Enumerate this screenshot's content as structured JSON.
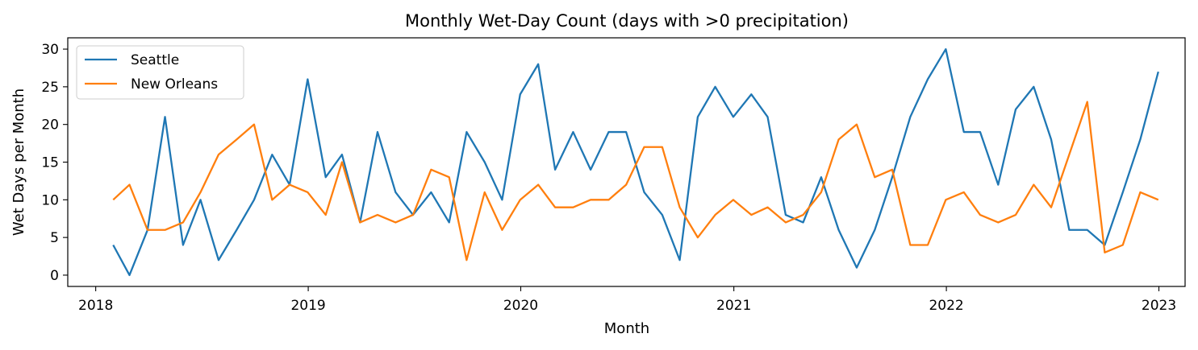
{
  "chart_data": {
    "type": "line",
    "title": "Monthly Wet-Day Count (days with >0 precipitation)",
    "xlabel": "Month",
    "ylabel": "Wet Days per Month",
    "xlim": [
      "2017-11-14",
      "2023-02-15"
    ],
    "ylim": [
      -1.5,
      31.5
    ],
    "x_ticks": [
      {
        "date": "2018-01-01",
        "label": "2018"
      },
      {
        "date": "2019-01-01",
        "label": "2019"
      },
      {
        "date": "2020-01-01",
        "label": "2020"
      },
      {
        "date": "2021-01-01",
        "label": "2021"
      },
      {
        "date": "2022-01-01",
        "label": "2022"
      },
      {
        "date": "2023-01-01",
        "label": "2023"
      }
    ],
    "y_ticks": [
      0,
      5,
      10,
      15,
      20,
      25,
      30
    ],
    "x": [
      "2018-01-31",
      "2018-02-28",
      "2018-03-31",
      "2018-04-30",
      "2018-05-31",
      "2018-06-30",
      "2018-07-31",
      "2018-08-31",
      "2018-09-30",
      "2018-10-31",
      "2018-11-30",
      "2018-12-31",
      "2019-01-31",
      "2019-02-28",
      "2019-03-31",
      "2019-04-30",
      "2019-05-31",
      "2019-06-30",
      "2019-07-31",
      "2019-08-31",
      "2019-09-30",
      "2019-10-31",
      "2019-11-30",
      "2019-12-31",
      "2020-01-31",
      "2020-02-29",
      "2020-03-31",
      "2020-04-30",
      "2020-05-31",
      "2020-06-30",
      "2020-07-31",
      "2020-08-31",
      "2020-09-30",
      "2020-10-31",
      "2020-11-30",
      "2020-12-31",
      "2021-01-31",
      "2021-02-28",
      "2021-03-31",
      "2021-04-30",
      "2021-05-31",
      "2021-06-30",
      "2021-07-31",
      "2021-08-31",
      "2021-09-30",
      "2021-10-31",
      "2021-11-30",
      "2021-12-31",
      "2022-01-31",
      "2022-02-28",
      "2022-03-31",
      "2022-04-30",
      "2022-05-31",
      "2022-06-30",
      "2022-07-31",
      "2022-08-31",
      "2022-09-30",
      "2022-10-31",
      "2022-11-30",
      "2022-12-31"
    ],
    "series": [
      {
        "name": "Seattle",
        "color": "#1f77b4",
        "values": [
          4,
          0,
          6,
          21,
          4,
          10,
          2,
          6,
          10,
          16,
          12,
          26,
          13,
          16,
          7,
          19,
          11,
          8,
          11,
          7,
          19,
          15,
          10,
          24,
          28,
          14,
          19,
          14,
          19,
          19,
          11,
          8,
          2,
          21,
          25,
          21,
          24,
          21,
          8,
          7,
          13,
          6,
          1,
          6,
          13,
          21,
          26,
          30,
          19,
          19,
          12,
          22,
          25,
          18,
          6,
          6,
          4,
          11,
          18,
          27
        ]
      },
      {
        "name": "New Orleans",
        "color": "#ff7f0e",
        "values": [
          10,
          12,
          6,
          6,
          7,
          11,
          16,
          18,
          20,
          10,
          12,
          11,
          8,
          15,
          7,
          8,
          7,
          8,
          14,
          13,
          2,
          11,
          6,
          10,
          12,
          9,
          9,
          10,
          10,
          12,
          17,
          17,
          9,
          5,
          8,
          10,
          8,
          9,
          7,
          8,
          11,
          18,
          20,
          13,
          14,
          4,
          4,
          10,
          11,
          8,
          7,
          8,
          12,
          9,
          16,
          23,
          3,
          4,
          11,
          10
        ]
      }
    ],
    "legend": {
      "position": "top-left"
    },
    "grid": false
  }
}
